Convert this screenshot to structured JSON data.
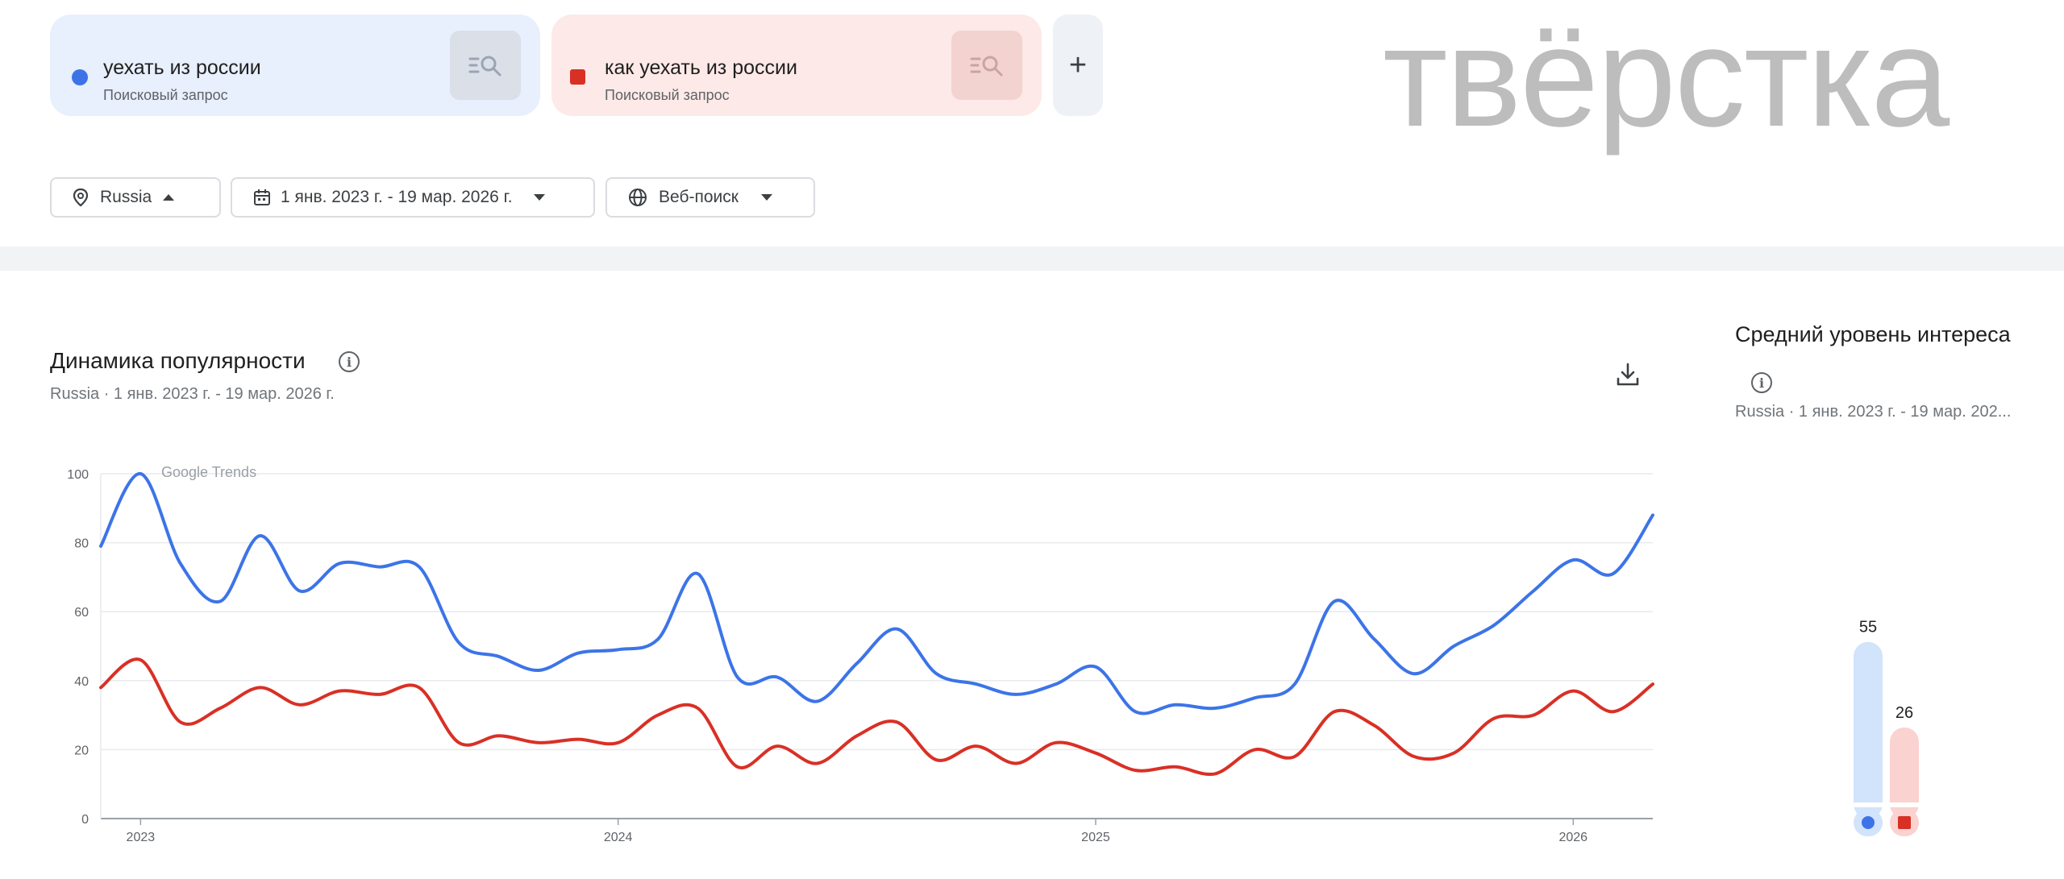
{
  "search_terms": [
    {
      "label": "уехать из россии",
      "sublabel": "Поисковый запрос",
      "color": "#3c74e8",
      "marker": "circle"
    },
    {
      "label": "как уехать из россии",
      "sublabel": "Поисковый запрос",
      "color": "#d93025",
      "marker": "square"
    }
  ],
  "add_term_label": "+",
  "watermark": "твёрстка",
  "filters": {
    "region": "Russia",
    "period": "1 янв. 2023 г. - 19 мар. 2026 г.",
    "source": "Веб-поиск"
  },
  "interest_over_time": {
    "title": "Динамика популярности",
    "subtitle": "Russia · 1 янв. 2023 г. - 19 мар. 2026 г."
  },
  "average_interest": {
    "title": "Средний уровень интереса",
    "subtitle": "Russia · 1 янв. 2023 г. - 19 мар. 202..."
  },
  "chart_data": [
    {
      "type": "line",
      "watermark": "Google Trends",
      "x_tick_labels": [
        "2023",
        "2024",
        "2025",
        "2026"
      ],
      "y_ticks": [
        0,
        20,
        40,
        60,
        80,
        100
      ],
      "ylim": [
        0,
        100
      ],
      "x": [
        "2022-12",
        "2023-01",
        "2023-02",
        "2023-03",
        "2023-04",
        "2023-05",
        "2023-06",
        "2023-07",
        "2023-08",
        "2023-09",
        "2023-10",
        "2023-11",
        "2023-12",
        "2024-01",
        "2024-02",
        "2024-03",
        "2024-04",
        "2024-05",
        "2024-06",
        "2024-07",
        "2024-08",
        "2024-09",
        "2024-10",
        "2024-11",
        "2024-12",
        "2025-01",
        "2025-02",
        "2025-03",
        "2025-04",
        "2025-05",
        "2025-06",
        "2025-07",
        "2025-08",
        "2025-09",
        "2025-10",
        "2025-11",
        "2025-12",
        "2026-01",
        "2026-02",
        "2026-03"
      ],
      "series": [
        {
          "name": "уехать из россии",
          "color": "#3c74e8",
          "values": [
            79,
            100,
            74,
            63,
            82,
            66,
            74,
            73,
            73,
            51,
            47,
            43,
            48,
            49,
            52,
            71,
            41,
            41,
            34,
            45,
            55,
            42,
            39,
            36,
            39,
            44,
            31,
            33,
            32,
            35,
            39,
            63,
            52,
            42,
            50,
            56,
            66,
            75,
            71,
            88
          ]
        },
        {
          "name": "как уехать из россии",
          "color": "#d93025",
          "values": [
            38,
            46,
            28,
            32,
            38,
            33,
            37,
            36,
            38,
            22,
            24,
            22,
            23,
            22,
            30,
            32,
            15,
            21,
            16,
            24,
            28,
            17,
            21,
            16,
            22,
            19,
            14,
            15,
            13,
            20,
            18,
            31,
            27,
            18,
            19,
            29,
            30,
            37,
            31,
            39
          ]
        }
      ]
    },
    {
      "type": "bar",
      "categories": [
        "уехать из россии",
        "как уехать из россии"
      ],
      "values": [
        55,
        26
      ],
      "ylim": [
        0,
        100
      ],
      "colors": [
        "#3c74e8",
        "#d93025"
      ]
    }
  ]
}
